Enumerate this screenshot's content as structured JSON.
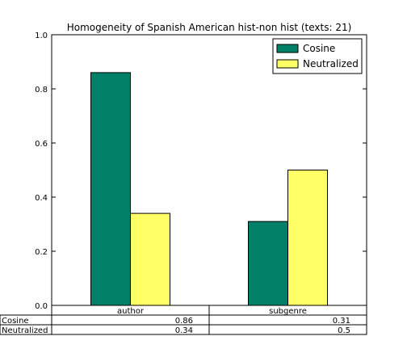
{
  "chart_data": {
    "type": "bar",
    "title": "Homogeneity of Spanish American hist-non hist (texts: 21)",
    "categories": [
      "author",
      "subgenre"
    ],
    "series": [
      {
        "name": "Cosine",
        "values": [
          0.86,
          0.31
        ],
        "color": "#008066"
      },
      {
        "name": "Neutralized",
        "values": [
          0.34,
          0.5
        ],
        "color": "#ffff66"
      }
    ],
    "ylim": [
      0,
      1.0
    ],
    "yticks": [
      "0.0",
      "0.2",
      "0.4",
      "0.6",
      "0.8",
      "1.0"
    ],
    "xlabel": "",
    "ylabel": "",
    "grid": false,
    "legend_position": "top-right",
    "table": {
      "col_labels": [
        "author",
        "subgenre"
      ],
      "rows": [
        {
          "label": "Cosine",
          "cells": [
            "0.86",
            "0.31"
          ]
        },
        {
          "label": "Neutralized",
          "cells": [
            "0.34",
            "0.5"
          ]
        }
      ]
    }
  }
}
